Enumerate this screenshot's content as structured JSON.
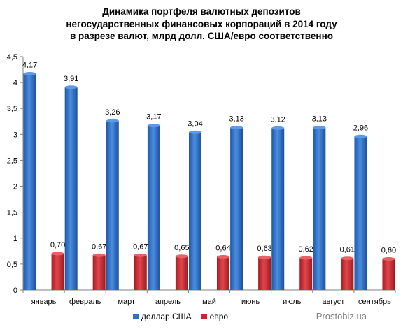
{
  "chart_data": {
    "type": "bar",
    "title_lines": [
      "Динамика портфеля валютных депозитов",
      "негосударственных финансовых корпораций в 2014 году",
      "в разрезе валют, млрд долл. США/евро соответственно"
    ],
    "categories": [
      "январь",
      "февраль",
      "март",
      "апрель",
      "май",
      "июнь",
      "июль",
      "август",
      "сентябрь"
    ],
    "series": [
      {
        "name": "доллар США",
        "color": "#2e6fc7",
        "values": [
          4.17,
          3.91,
          3.26,
          3.17,
          3.04,
          3.13,
          3.12,
          3.13,
          2.96
        ],
        "labels": [
          "4,17",
          "3,91",
          "3,26",
          "3,17",
          "3,04",
          "3,13",
          "3,12",
          "3,13",
          "2,96"
        ]
      },
      {
        "name": "евро",
        "color": "#c8262c",
        "values": [
          0.7,
          0.67,
          0.67,
          0.65,
          0.64,
          0.63,
          0.62,
          0.61,
          0.6
        ],
        "labels": [
          "0,70",
          "0,67",
          "0,67",
          "0,65",
          "0,64",
          "0,63",
          "0,62",
          "0,61",
          "0,60"
        ]
      }
    ],
    "ylim": [
      0,
      4.5
    ],
    "yticks": [
      "0",
      "0,5",
      "1",
      "1,5",
      "2",
      "2,5",
      "3",
      "3,5",
      "4",
      "4,5"
    ],
    "grid": false,
    "legend_position": "bottom"
  },
  "watermark": "Prostobiz.ua"
}
